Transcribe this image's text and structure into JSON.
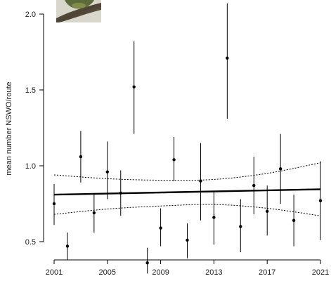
{
  "chart_data": {
    "type": "scatter",
    "title": "",
    "xlabel": "",
    "ylabel": "mean number NSWO/route",
    "xlim": [
      2000.4,
      2021.6
    ],
    "ylim": [
      0.25,
      2.08
    ],
    "x_ticks": [
      2001,
      2005,
      2009,
      2013,
      2017,
      2021
    ],
    "y_ticks": [
      0.5,
      1.0,
      1.5,
      2.0
    ],
    "y_tick_labels": [
      "0.5",
      "1.0",
      "1.5",
      "2.0"
    ],
    "grid": false,
    "legend": "none",
    "series": [
      {
        "kind": "points-with-error-bars",
        "x": [
          2001,
          2002,
          2003,
          2004,
          2005,
          2006,
          2007,
          2008,
          2009,
          2010,
          2011,
          2012,
          2013,
          2014,
          2015,
          2016,
          2017,
          2018,
          2019,
          2021
        ],
        "y": [
          0.75,
          0.47,
          1.06,
          0.69,
          0.96,
          0.82,
          1.52,
          0.36,
          0.59,
          1.04,
          0.51,
          0.9,
          0.66,
          1.71,
          0.6,
          0.87,
          0.7,
          0.98,
          0.64,
          0.77
        ],
        "lower": [
          0.61,
          0.38,
          0.89,
          0.56,
          0.78,
          0.67,
          1.21,
          0.29,
          0.47,
          0.9,
          0.39,
          0.64,
          0.48,
          1.31,
          0.43,
          0.68,
          0.54,
          0.75,
          0.47,
          0.51
        ],
        "upper": [
          0.88,
          0.56,
          1.23,
          0.82,
          1.16,
          0.97,
          1.82,
          0.46,
          0.72,
          1.19,
          0.62,
          1.15,
          0.83,
          2.07,
          0.78,
          1.06,
          0.87,
          1.21,
          0.81,
          1.03
        ]
      },
      {
        "kind": "trend-line",
        "x": [
          2001,
          2021
        ],
        "y": [
          0.81,
          0.845
        ]
      },
      {
        "kind": "ci-upper",
        "x": [
          2001,
          2005,
          2009,
          2013,
          2017,
          2021
        ],
        "y": [
          0.94,
          0.915,
          0.905,
          0.91,
          0.95,
          1.02
        ]
      },
      {
        "kind": "ci-lower",
        "x": [
          2001,
          2005,
          2009,
          2013,
          2017,
          2021
        ],
        "y": [
          0.68,
          0.715,
          0.735,
          0.745,
          0.72,
          0.67
        ]
      }
    ]
  },
  "photo": {
    "description_icon": "owl-photo-thumbnail"
  }
}
